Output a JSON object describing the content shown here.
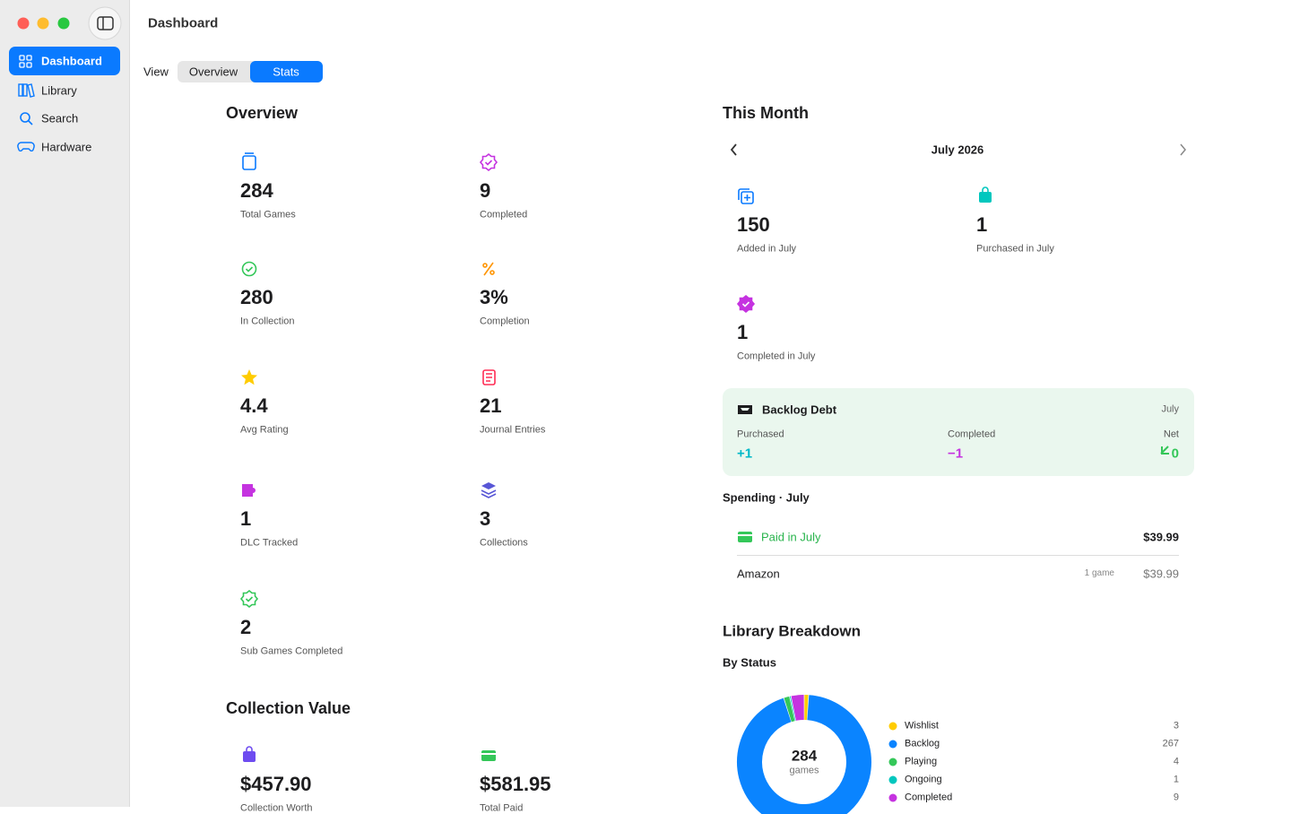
{
  "window": {
    "title": "Dashboard"
  },
  "sidebar": {
    "items": [
      "Dashboard",
      "Library",
      "Search",
      "Hardware"
    ],
    "selected": "Dashboard"
  },
  "view": {
    "label": "View",
    "options": [
      "Overview",
      "Stats"
    ],
    "selected": "Stats"
  },
  "overview": {
    "title": "Overview",
    "stats": [
      {
        "value": "284",
        "label": "Total Games"
      },
      {
        "value": "9",
        "label": "Completed"
      },
      {
        "value": "280",
        "label": "In Collection"
      },
      {
        "value": "3%",
        "label": "Completion"
      },
      {
        "value": "4.4",
        "label": "Avg Rating"
      },
      {
        "value": "21",
        "label": "Journal Entries"
      },
      {
        "value": "1",
        "label": "DLC Tracked"
      },
      {
        "value": "3",
        "label": "Collections"
      },
      {
        "value": "2",
        "label": "Sub Games Completed"
      }
    ]
  },
  "collection_value": {
    "title": "Collection Value",
    "stats": [
      {
        "value": "$457.90",
        "label": "Collection Worth"
      },
      {
        "value": "$581.95",
        "label": "Total Paid"
      }
    ]
  },
  "this_month": {
    "title": "This Month",
    "month": "July 2026",
    "stats": [
      {
        "value": "150",
        "label": "Added in July"
      },
      {
        "value": "1",
        "label": "Purchased in July"
      },
      {
        "value": "1",
        "label": "Completed in July"
      }
    ]
  },
  "backlog_debt": {
    "title": "Backlog Debt",
    "period": "July",
    "purchased": {
      "label": "Purchased",
      "value": "+1"
    },
    "completed": {
      "label": "Completed",
      "value": "−1"
    },
    "net": {
      "label": "Net",
      "value": "0"
    }
  },
  "spending": {
    "title": "Spending · July",
    "paid": {
      "label": "Paid in July",
      "amount": "$39.99"
    },
    "rows": [
      {
        "store": "Amazon",
        "count": "1 game",
        "amount": "$39.99"
      }
    ]
  },
  "library_breakdown": {
    "title": "Library Breakdown",
    "subtitle": "By Status",
    "total": "284",
    "total_label": "games",
    "items": [
      {
        "name": "Wishlist",
        "color": "#ffcc00",
        "value": 3
      },
      {
        "name": "Backlog",
        "color": "#0a84ff",
        "value": 267
      },
      {
        "name": "Playing",
        "color": "#34c759",
        "value": 4
      },
      {
        "name": "Ongoing",
        "color": "#00c7be",
        "value": 1
      },
      {
        "name": "Completed",
        "color": "#c533e0",
        "value": 9
      }
    ]
  }
}
